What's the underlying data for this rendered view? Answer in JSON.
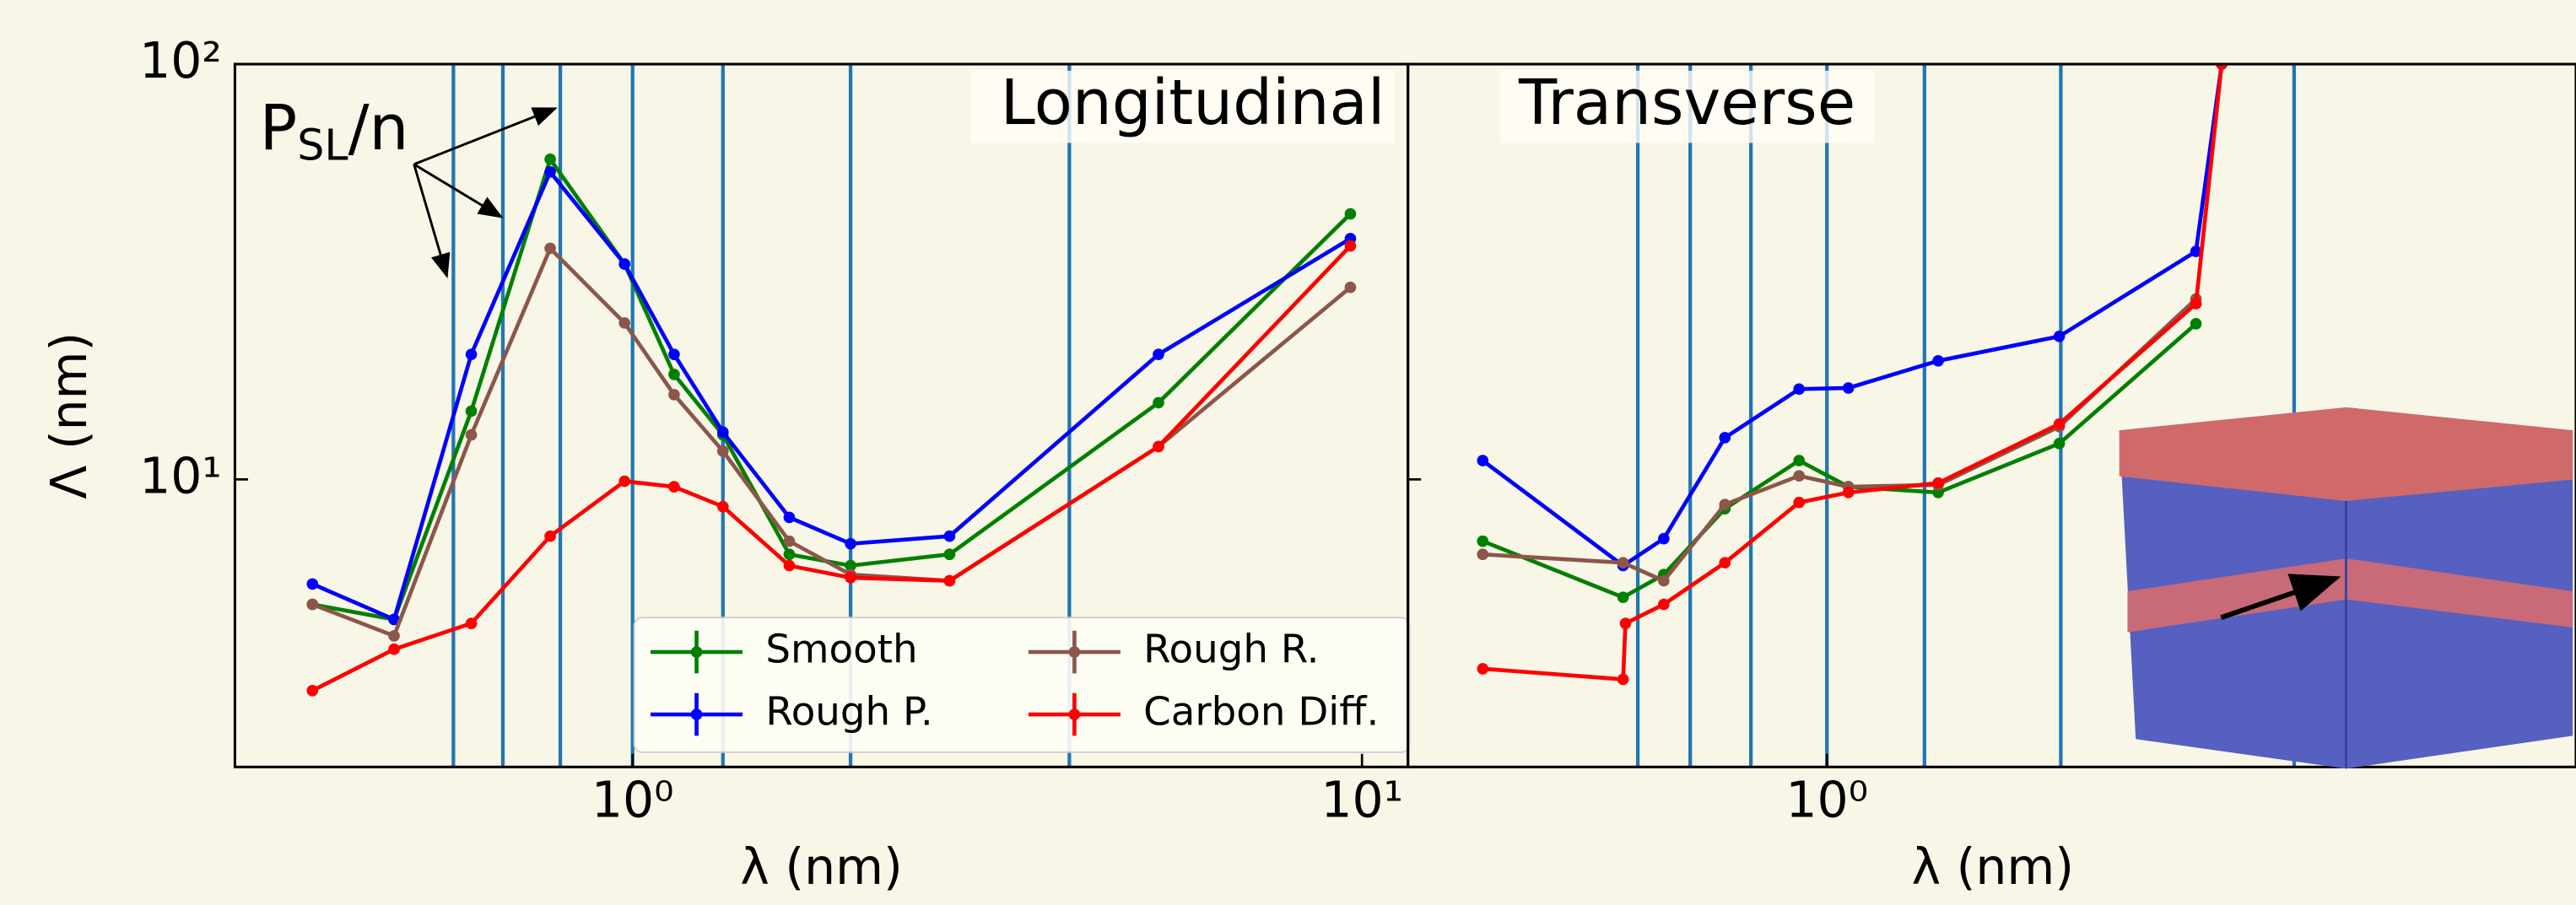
{
  "chart_data": [
    {
      "type": "line",
      "title": "Longitudinal",
      "xlabel": "λ (nm)",
      "ylabel": "Λ  (nm)",
      "xscale": "log",
      "yscale": "log",
      "xlim": [
        0.285,
        11.56
      ],
      "ylim": [
        2.03,
        100
      ],
      "xticks": [
        {
          "value": 1,
          "label": "10⁰"
        },
        {
          "value": 10,
          "label": "10¹"
        }
      ],
      "yticks": [
        {
          "value": 10,
          "label": "10¹"
        },
        {
          "value": 100,
          "label": "10²"
        }
      ],
      "vlines": [
        0.568,
        0.664,
        0.796,
        1.0,
        1.33,
        1.99,
        3.97
      ],
      "vline_color": "#1f77b4",
      "annotation": {
        "base": "P",
        "sub": "SL",
        "tail": "/n"
      },
      "legend": "lower center",
      "series": [
        {
          "name": "Smooth",
          "color": "#008000",
          "x": [
            0.364,
            0.471,
            0.601,
            0.771,
            0.975,
            1.14,
            1.33,
            1.64,
            1.99,
            2.72,
            5.26,
            9.64
          ],
          "values": [
            5.0,
            4.6,
            14.6,
            59,
            33,
            17.9,
            12.8,
            6.6,
            6.2,
            6.6,
            15.3,
            43.6
          ]
        },
        {
          "name": "Rough P.",
          "color": "#0000ff",
          "x": [
            0.364,
            0.471,
            0.601,
            0.771,
            0.975,
            1.14,
            1.33,
            1.64,
            1.99,
            2.72,
            5.26,
            9.64
          ],
          "values": [
            5.6,
            4.6,
            20,
            55,
            33,
            20,
            13,
            8.1,
            7.0,
            7.3,
            20,
            38
          ]
        },
        {
          "name": "Rough R.",
          "color": "#8c564b",
          "x": [
            0.364,
            0.471,
            0.601,
            0.771,
            0.975,
            1.14,
            1.33,
            1.64,
            1.99,
            2.72,
            5.26,
            9.64
          ],
          "values": [
            5.0,
            4.2,
            12.8,
            36,
            23.8,
            16,
            11.7,
            7.1,
            5.9,
            5.7,
            12,
            29
          ]
        },
        {
          "name": "Carbon Diff.",
          "color": "#ff0000",
          "x": [
            0.364,
            0.471,
            0.601,
            0.771,
            0.975,
            1.14,
            1.33,
            1.64,
            1.99,
            2.72,
            5.26,
            9.64
          ],
          "values": [
            3.1,
            3.9,
            4.5,
            7.3,
            9.9,
            9.6,
            8.6,
            6.2,
            5.8,
            5.7,
            12,
            36.5
          ]
        }
      ]
    },
    {
      "type": "line",
      "title": "Transverse",
      "xlabel": "λ (nm)",
      "xscale": "log",
      "yscale": "log",
      "xlim": [
        0.267,
        10.6
      ],
      "ylim": [
        2.03,
        100
      ],
      "xticks": [
        {
          "value": 1,
          "label": "10⁰"
        }
      ],
      "yticks": [
        10,
        100
      ],
      "vlines": [
        0.551,
        0.65,
        0.787,
        1.0,
        1.36,
        2.09,
        4.36
      ],
      "vline_color": "#1f77b4",
      "series": [
        {
          "name": "Smooth",
          "color": "#008000",
          "x": [
            0.338,
            0.526,
            0.598,
            0.725,
            0.916,
            1.07,
            1.42,
            2.08,
            3.2
          ],
          "values": [
            7.1,
            5.2,
            5.9,
            8.5,
            11.1,
            9.6,
            9.3,
            12.2,
            23.7
          ]
        },
        {
          "name": "Rough P.",
          "color": "#0000ff",
          "x": [
            0.338,
            0.526,
            0.598,
            0.725,
            0.916,
            1.07,
            1.42,
            2.08,
            3.2,
            3.47
          ],
          "values": [
            11.1,
            6.2,
            7.2,
            12.6,
            16.5,
            16.6,
            19.3,
            22.1,
            35.4,
            100
          ]
        },
        {
          "name": "Rough R.",
          "color": "#8c564b",
          "x": [
            0.338,
            0.526,
            0.598,
            0.725,
            0.916,
            1.07,
            1.42,
            2.08,
            3.2
          ],
          "values": [
            6.6,
            6.3,
            5.7,
            8.7,
            10.2,
            9.6,
            9.7,
            13.4,
            27.2
          ]
        },
        {
          "name": "Carbon Diff.",
          "color": "#ff0000",
          "x": [
            0.338,
            0.526,
            0.53,
            0.598,
            0.725,
            0.916,
            1.07,
            1.42,
            2.08,
            3.2,
            3.47
          ],
          "values": [
            3.5,
            3.3,
            4.5,
            5.0,
            6.3,
            8.8,
            9.3,
            9.8,
            13.6,
            26.5,
            100
          ]
        }
      ]
    }
  ]
}
